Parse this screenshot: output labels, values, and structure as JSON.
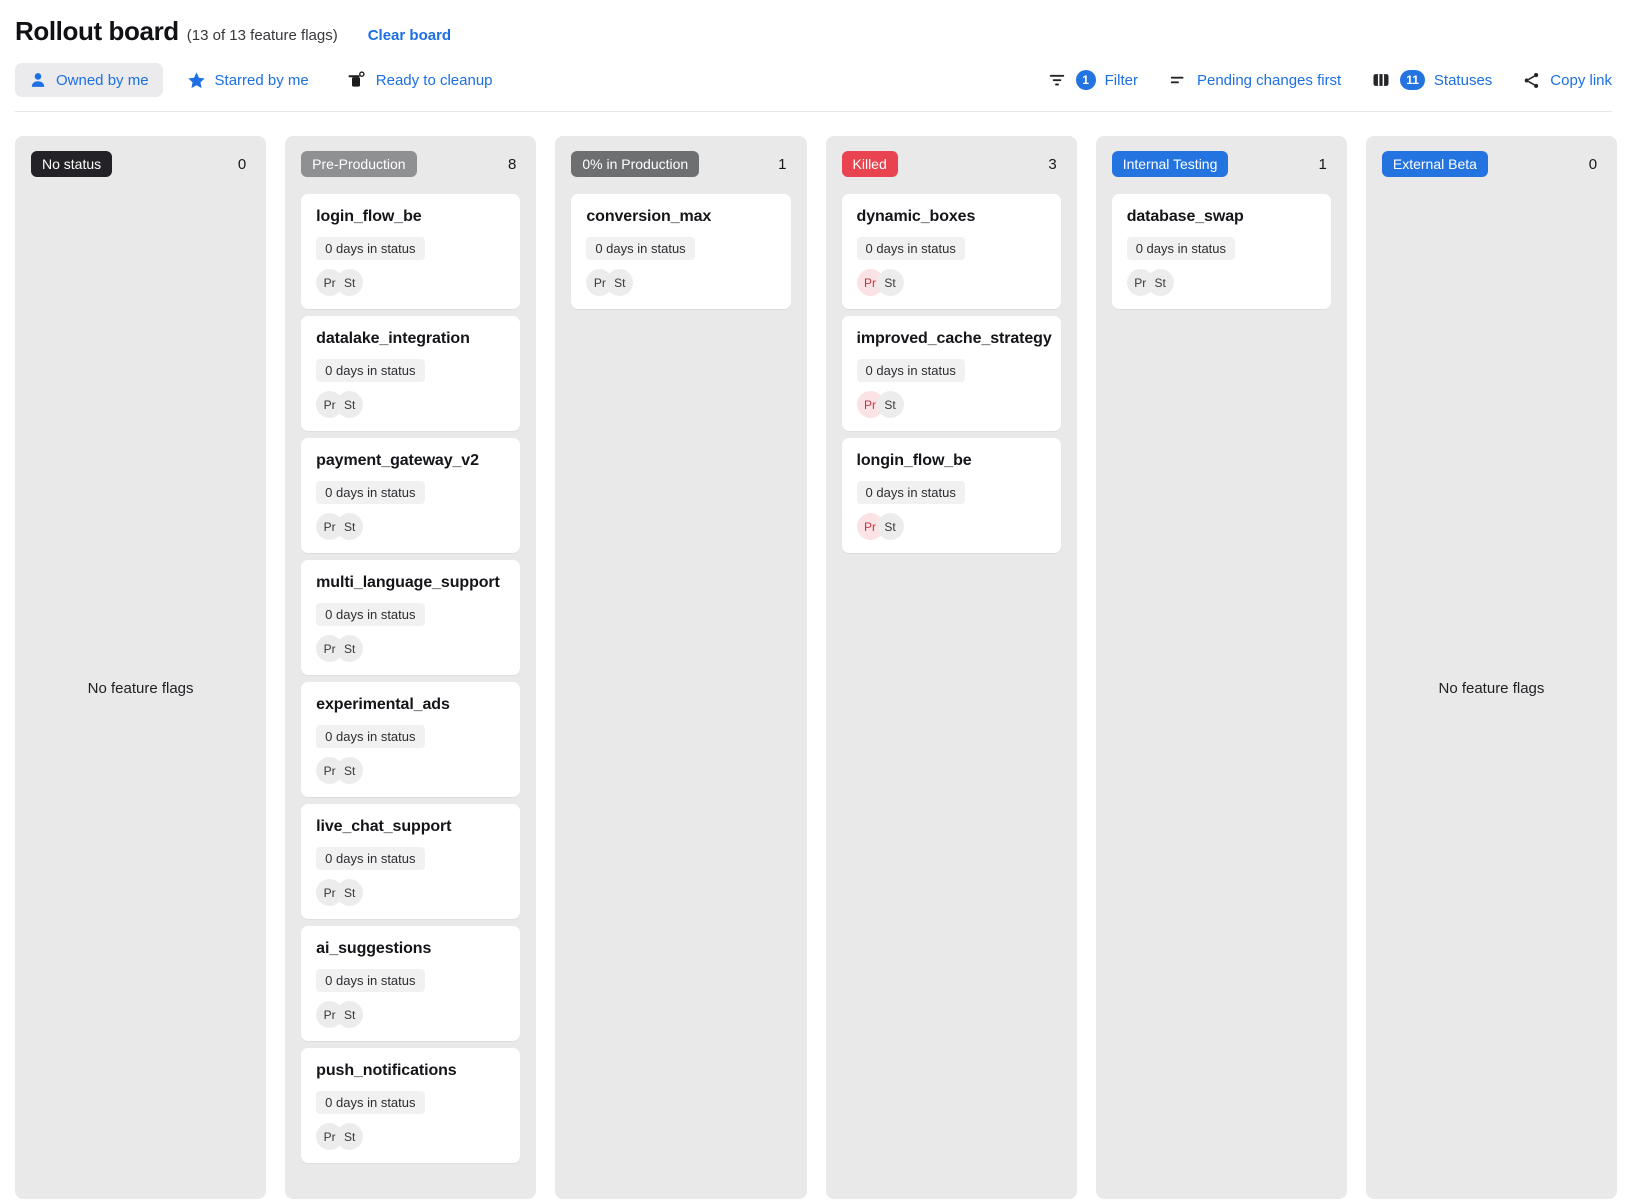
{
  "header": {
    "title": "Rollout board",
    "subtitle": "(13 of 13 feature flags)",
    "clear_board_label": "Clear board"
  },
  "toolbar": {
    "owned_by_me": {
      "label": "Owned by me",
      "active": true
    },
    "starred_by_me": {
      "label": "Starred by me"
    },
    "ready_to_cleanup": {
      "label": "Ready to cleanup"
    },
    "filter": {
      "label": "Filter",
      "badge": "1"
    },
    "pending_changes": {
      "label": "Pending changes first"
    },
    "statuses": {
      "label": "Statuses",
      "badge": "11"
    },
    "copy_link": {
      "label": "Copy link"
    }
  },
  "colors": {
    "link_blue": "#1d6fe3",
    "badge_blue": "#2374e1",
    "no_status_dark": "#232327",
    "pre_production_gray": "#8f9092",
    "production_gray": "#6e6f71",
    "killed_red": "#e8434e",
    "column_bg": "#e9e9ea"
  },
  "board": {
    "empty_text": "No feature flags",
    "columns": [
      {
        "name": "No status",
        "count": "0",
        "badge_color": "#232327",
        "cards": []
      },
      {
        "name": "Pre-Production",
        "count": "8",
        "badge_color": "#8f9092",
        "cards": [
          {
            "title": "login_flow_be",
            "days": "0 days in status",
            "chips": [
              {
                "label": "Pr",
                "variant": "default"
              },
              {
                "label": "St",
                "variant": "default"
              }
            ]
          },
          {
            "title": "datalake_integration",
            "days": "0 days in status",
            "chips": [
              {
                "label": "Pr",
                "variant": "default"
              },
              {
                "label": "St",
                "variant": "default"
              }
            ]
          },
          {
            "title": "payment_gateway_v2",
            "days": "0 days in status",
            "chips": [
              {
                "label": "Pr",
                "variant": "default"
              },
              {
                "label": "St",
                "variant": "default"
              }
            ]
          },
          {
            "title": "multi_language_support",
            "days": "0 days in status",
            "chips": [
              {
                "label": "Pr",
                "variant": "default"
              },
              {
                "label": "St",
                "variant": "default"
              }
            ]
          },
          {
            "title": "experimental_ads",
            "days": "0 days in status",
            "chips": [
              {
                "label": "Pr",
                "variant": "default"
              },
              {
                "label": "St",
                "variant": "default"
              }
            ]
          },
          {
            "title": "live_chat_support",
            "days": "0 days in status",
            "chips": [
              {
                "label": "Pr",
                "variant": "default"
              },
              {
                "label": "St",
                "variant": "default"
              }
            ]
          },
          {
            "title": "ai_suggestions",
            "days": "0 days in status",
            "chips": [
              {
                "label": "Pr",
                "variant": "default"
              },
              {
                "label": "St",
                "variant": "default"
              }
            ]
          },
          {
            "title": "push_notifications",
            "days": "0 days in status",
            "chips": [
              {
                "label": "Pr",
                "variant": "default"
              },
              {
                "label": "St",
                "variant": "default"
              }
            ]
          }
        ]
      },
      {
        "name": "0% in Production",
        "count": "1",
        "badge_color": "#6e6f71",
        "cards": [
          {
            "title": "conversion_max",
            "days": "0 days in status",
            "chips": [
              {
                "label": "Pr",
                "variant": "default"
              },
              {
                "label": "St",
                "variant": "default"
              }
            ]
          }
        ]
      },
      {
        "name": "Killed",
        "count": "3",
        "badge_color": "#e8434e",
        "cards": [
          {
            "title": "dynamic_boxes",
            "days": "0 days in status",
            "chips": [
              {
                "label": "Pr",
                "variant": "red"
              },
              {
                "label": "St",
                "variant": "default"
              }
            ]
          },
          {
            "title": "improved_cache_strategy",
            "days": "0 days in status",
            "chips": [
              {
                "label": "Pr",
                "variant": "red"
              },
              {
                "label": "St",
                "variant": "default"
              }
            ]
          },
          {
            "title": "longin_flow_be",
            "days": "0 days in status",
            "chips": [
              {
                "label": "Pr",
                "variant": "red"
              },
              {
                "label": "St",
                "variant": "default"
              }
            ]
          }
        ]
      },
      {
        "name": "Internal Testing",
        "count": "1",
        "badge_color": "#2374e1",
        "cards": [
          {
            "title": "database_swap",
            "days": "0 days in status",
            "chips": [
              {
                "label": "Pr",
                "variant": "default"
              },
              {
                "label": "St",
                "variant": "default"
              }
            ]
          }
        ]
      },
      {
        "name": "External Beta",
        "count": "0",
        "badge_color": "#2374e1",
        "cards": []
      }
    ]
  }
}
